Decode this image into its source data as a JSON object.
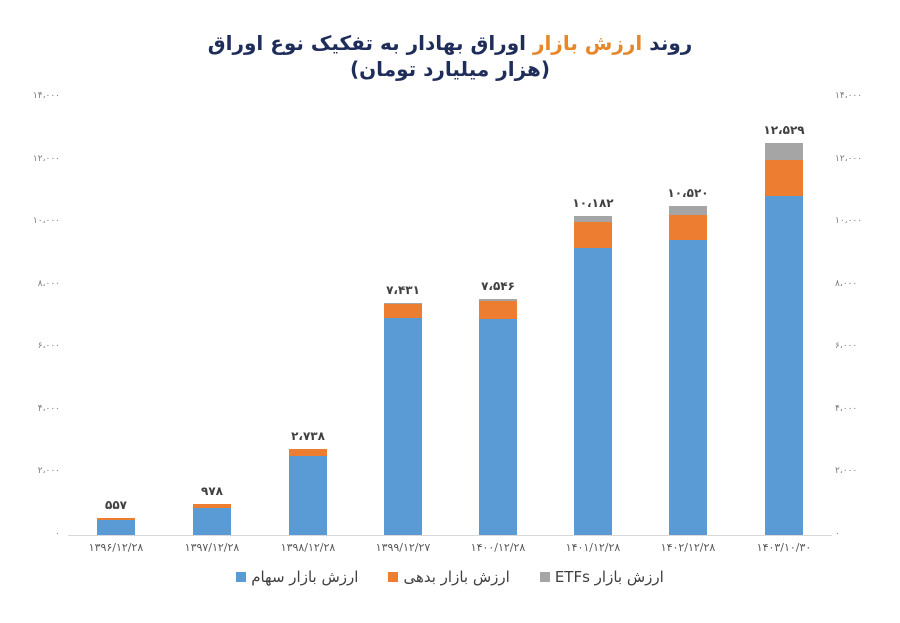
{
  "chart_data": {
    "type": "bar",
    "stacked": true,
    "title": "روند ارزش بازار اوراق بهادار به تفکیک نوع اوراق",
    "title_highlight": "ارزش بازار",
    "subtitle": "(هزار میلیارد تومان)",
    "xlabel": "",
    "ylabel": "",
    "ylim": [
      0,
      14000
    ],
    "yticks": [
      0,
      2000,
      4000,
      6000,
      8000,
      10000,
      12000,
      14000
    ],
    "ytick_labels": [
      "۰",
      "۲،۰۰۰",
      "۴،۰۰۰",
      "۶،۰۰۰",
      "۸،۰۰۰",
      "۱۰،۰۰۰",
      "۱۲،۰۰۰",
      "۱۴،۰۰۰"
    ],
    "grid": false,
    "dual_y_axis_labels": true,
    "legend_position": "bottom",
    "categories": [
      "۱۳۹۶/۱۲/۲۸",
      "۱۳۹۷/۱۲/۲۸",
      "۱۳۹۸/۱۲/۲۸",
      "۱۳۹۹/۱۲/۲۷",
      "۱۴۰۰/۱۲/۲۸",
      "۱۴۰۱/۱۲/۲۸",
      "۱۴۰۲/۱۲/۲۸",
      "۱۴۰۳/۱۰/۳۰"
    ],
    "series": [
      {
        "name": "ارزش بازار سهام",
        "color": "#5b9bd5",
        "values": [
          480,
          865,
          2530,
          6950,
          6890,
          9170,
          9420,
          10830
        ]
      },
      {
        "name": "ارزش بازار بدهی",
        "color": "#ed7d31",
        "values": [
          77,
          113,
          208,
          420,
          580,
          830,
          800,
          1150
        ]
      },
      {
        "name": "ارزش بازار ETFs",
        "color": "#a5a5a5",
        "values": [
          0,
          0,
          0,
          61,
          76,
          182,
          300,
          549
        ]
      }
    ],
    "totals": [
      557,
      978,
      2738,
      7431,
      7546,
      10182,
      10520,
      12529
    ],
    "total_labels": [
      "۵۵۷",
      "۹۷۸",
      "۲،۷۳۸",
      "۷،۴۳۱",
      "۷،۵۴۶",
      "۱۰،۱۸۲",
      "۱۰،۵۲۰",
      "۱۲،۵۲۹"
    ]
  },
  "legend": [
    {
      "label": "ارزش بازار ETFs",
      "color": "#a5a5a5"
    },
    {
      "label": "ارزش بازار بدهی",
      "color": "#ed7d31"
    },
    {
      "label": "ارزش بازار سهام",
      "color": "#5b9bd5"
    }
  ]
}
